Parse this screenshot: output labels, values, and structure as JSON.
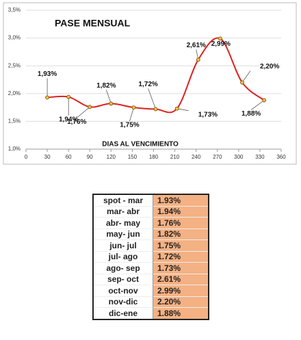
{
  "chart_data": {
    "type": "line",
    "title": "PASE MENSUAL",
    "x_label": "DIAS AL VENCIMIENTO",
    "x": [
      30,
      60,
      90,
      120,
      152,
      183,
      213,
      243,
      274,
      305,
      336
    ],
    "series": [
      {
        "color": "#e02020",
        "marker_color": "#f5c242",
        "values": [
          1.93,
          1.94,
          1.76,
          1.82,
          1.75,
          1.72,
          1.73,
          2.61,
          2.99,
          2.2,
          1.88
        ],
        "value_labels": [
          "1,93%",
          "1,94%",
          "1,76%",
          "1,82%",
          "1,75%",
          "1,72%",
          "1,73%",
          "2,61%",
          "2,99%",
          "2,20%",
          "1,88%"
        ]
      }
    ],
    "xlim": [
      0,
      360
    ],
    "xticks": [
      0,
      30,
      60,
      90,
      120,
      150,
      180,
      210,
      240,
      270,
      300,
      330,
      360
    ],
    "ylim": [
      1.0,
      3.5
    ],
    "yticks": [
      {
        "value": 1.0,
        "label": "1,0%"
      },
      {
        "value": 1.5,
        "label": "1,5%"
      },
      {
        "value": 2.0,
        "label": "2,0%"
      },
      {
        "value": 2.5,
        "label": "2,5%"
      },
      {
        "value": 3.0,
        "label": "3,0%"
      },
      {
        "value": 3.5,
        "label": "3,5%"
      }
    ],
    "grid": true
  },
  "table": {
    "rows": [
      [
        "spot - mar",
        "1.93%"
      ],
      [
        "mar- abr",
        "1.94%"
      ],
      [
        "abr- may",
        "1.76%"
      ],
      [
        "may- jun",
        "1.82%"
      ],
      [
        "jun- jul",
        "1.75%"
      ],
      [
        "jul- ago",
        "1.72%"
      ],
      [
        "ago- sep",
        "1.73%"
      ],
      [
        "sep- oct",
        "2.61%"
      ],
      [
        "oct-nov",
        "2.99%"
      ],
      [
        "nov-dic",
        "2.20%"
      ],
      [
        "dic-ene",
        "1.88%"
      ]
    ]
  }
}
